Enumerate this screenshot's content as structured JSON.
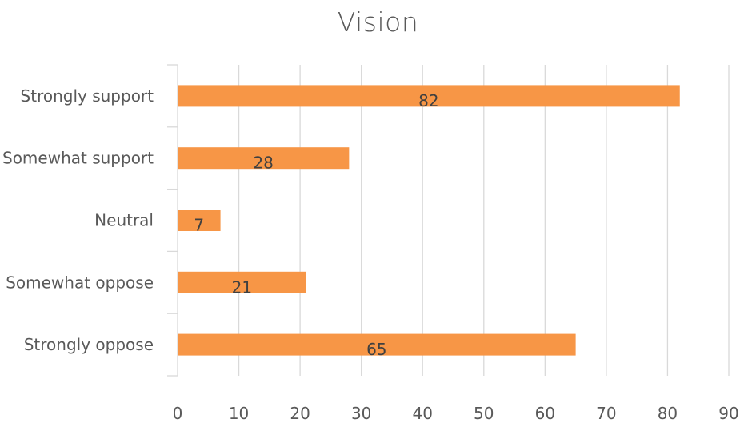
{
  "chart_data": {
    "type": "bar",
    "orientation": "horizontal",
    "title": "Vision",
    "categories": [
      "Strongly support",
      "Somewhat support",
      "Neutral",
      "Somewhat oppose",
      "Strongly oppose"
    ],
    "values": [
      82,
      28,
      7,
      21,
      65
    ],
    "xlim": [
      0,
      90
    ],
    "xticks": [
      0,
      10,
      20,
      30,
      40,
      50,
      60,
      70,
      80,
      90
    ],
    "grid": true,
    "legend": "none",
    "data_labels": true,
    "bar_color": "#F79646",
    "gridline_color": "#D9D9D9",
    "text_color": "#595959"
  }
}
